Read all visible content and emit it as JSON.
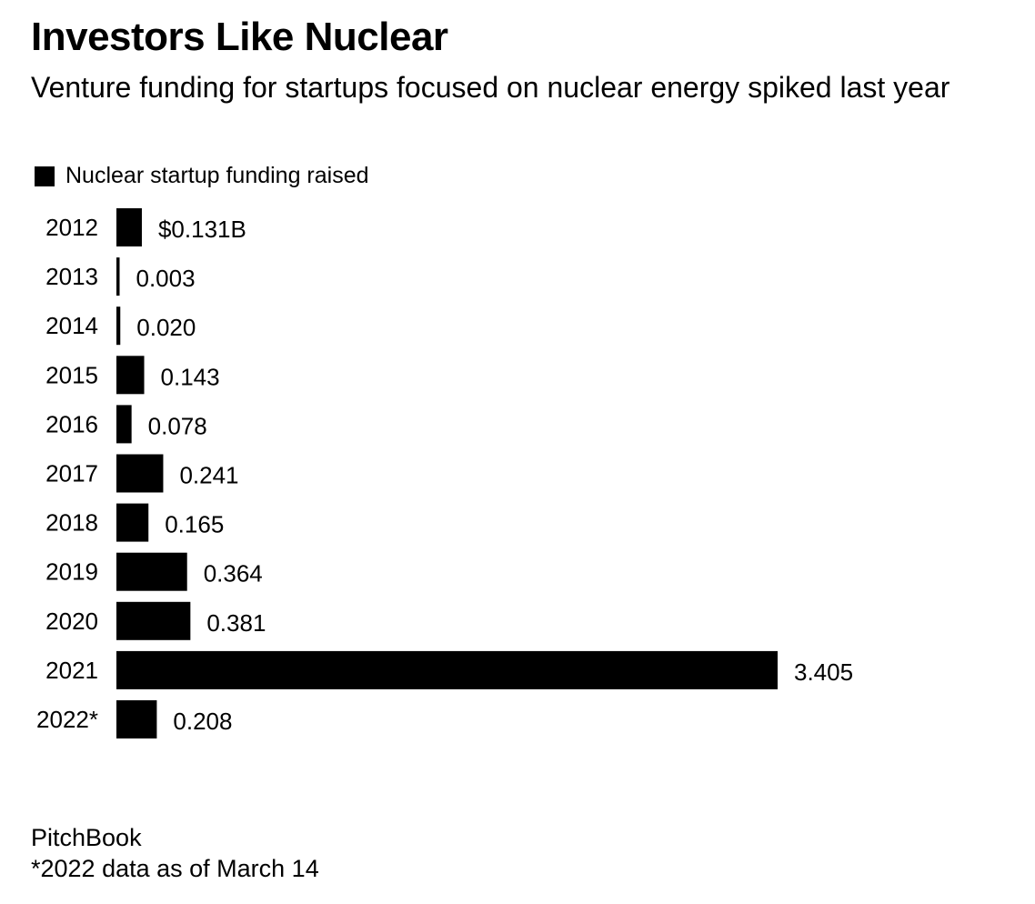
{
  "chart_data": {
    "type": "bar",
    "orientation": "horizontal",
    "title": "Investors Like Nuclear",
    "subtitle": "Venture funding for startups focused on nuclear energy spiked last year",
    "legend": [
      "Nuclear startup funding raised"
    ],
    "series": [
      {
        "name": "Nuclear startup funding raised",
        "values": [
          0.131,
          0.003,
          0.02,
          0.143,
          0.078,
          0.241,
          0.165,
          0.364,
          0.381,
          3.405,
          0.208
        ]
      }
    ],
    "categories": [
      "2012",
      "2013",
      "2014",
      "2015",
      "2016",
      "2017",
      "2018",
      "2019",
      "2020",
      "2021",
      "2022*"
    ],
    "value_labels": [
      "$0.131B",
      "0.003",
      "0.020",
      "0.143",
      "0.078",
      "0.241",
      "0.165",
      "0.364",
      "0.381",
      "3.405",
      "0.208"
    ],
    "bar_color": "#000000",
    "grid": false,
    "xlim": [
      0,
      3.405
    ]
  },
  "footer": {
    "source": "PitchBook",
    "note": "*2022 data as of March 14"
  }
}
